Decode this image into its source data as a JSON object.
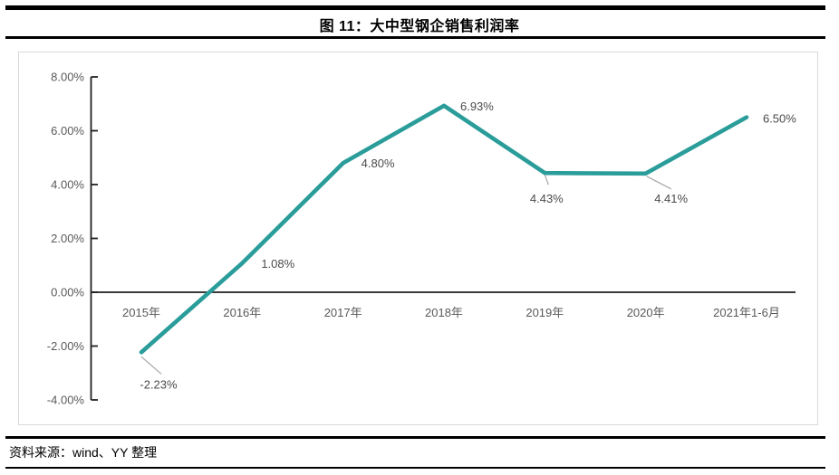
{
  "header": {
    "title": "图 11：大中型钢企销售利润率"
  },
  "footer": {
    "source": "资料来源：wind、YY 整理"
  },
  "chart_data": {
    "type": "line",
    "title": "大中型钢企销售利润率",
    "categories": [
      "2015年",
      "2016年",
      "2017年",
      "2018年",
      "2019年",
      "2020年",
      "2021年1-6月"
    ],
    "series": [
      {
        "name": "销售利润率",
        "values": [
          -2.23,
          1.08,
          4.8,
          6.93,
          4.43,
          4.41,
          6.5
        ]
      }
    ],
    "point_labels": [
      "-2.23%",
      "1.08%",
      "4.80%",
      "6.93%",
      "4.43%",
      "4.41%",
      "6.50%"
    ],
    "y_tick_labels": [
      "8.00%",
      "6.00%",
      "4.00%",
      "2.00%",
      "0.00%",
      "-2.00%",
      "-4.00%"
    ],
    "y_tick_values": [
      8,
      6,
      4,
      2,
      0,
      -2,
      -4
    ],
    "ylim": [
      -4,
      8
    ],
    "xlabel": "",
    "ylabel": "",
    "grid": false,
    "legend_position": "none",
    "colors": {
      "line": "#2a9d9a",
      "axis": "#1f1f1f",
      "axis_label": "#595959",
      "data_label": "#4a4a4a",
      "leader": "#a6a6a6",
      "frame_border": "#d9d9d9"
    }
  }
}
